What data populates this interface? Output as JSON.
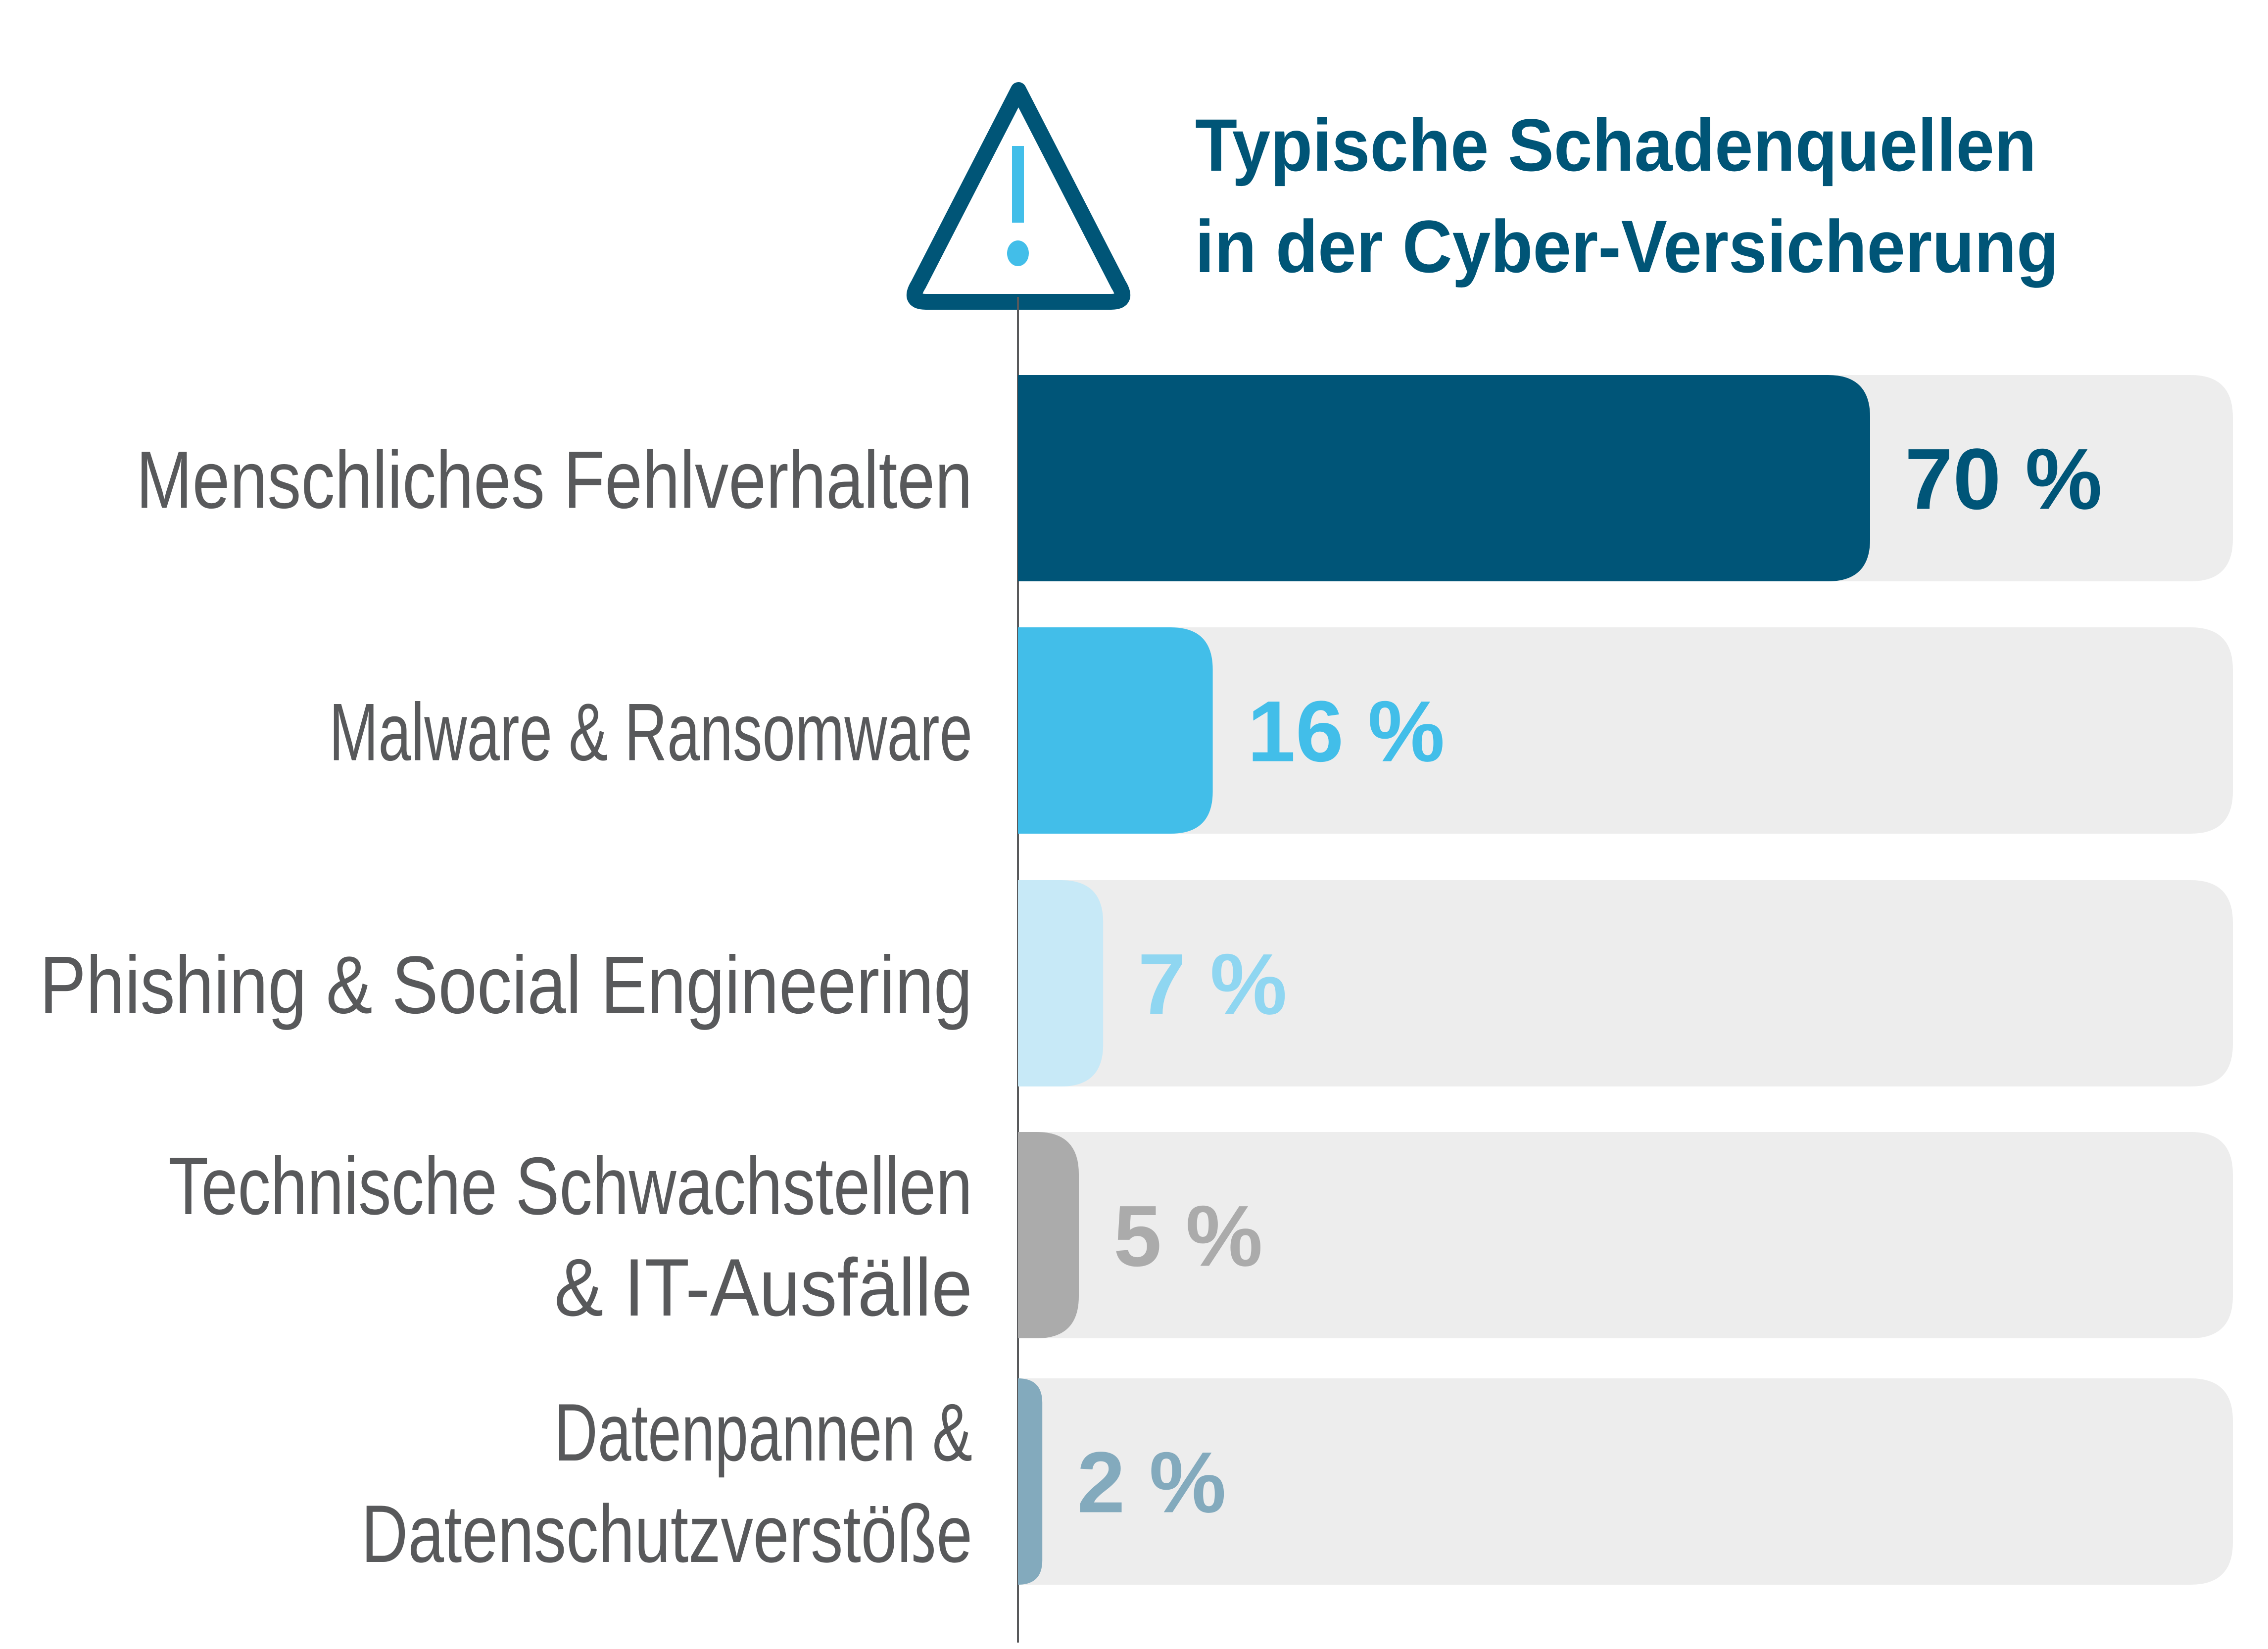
{
  "chart_data": {
    "type": "bar",
    "orientation": "horizontal",
    "title": [
      "Typische Schadenquellen",
      "in der Cyber-Versicherung"
    ],
    "title_icon": "warning-triangle-icon",
    "xlabel": "",
    "ylabel": "",
    "xlim": [
      0,
      100
    ],
    "grid": false,
    "legend": "none",
    "categories": [
      [
        "Menschliches Fehlverhalten"
      ],
      [
        "Malware & Ransomware"
      ],
      [
        "Phishing & Social Engineering"
      ],
      [
        "Technische Schwachstellen",
        "& IT-Ausfälle"
      ],
      [
        "Datenpannen &",
        "Datenschutzverstöße"
      ]
    ],
    "values": [
      70,
      16,
      7,
      5,
      2
    ],
    "value_labels": [
      "70 %",
      "16 %",
      "7 %",
      "5 %",
      "2 %"
    ],
    "unit": "%",
    "colors": {
      "bars": [
        "#005578",
        "#42bee9",
        "#c7e9f7",
        "#ababab",
        "#83aabd"
      ],
      "value_labels": [
        "#005578",
        "#42bee9",
        "#8fd6f1",
        "#ababab",
        "#83aabd"
      ],
      "track": "#ededed",
      "title": "#005577",
      "category_text": "#58595b",
      "axis": "#58595b",
      "icon_stroke": "#005577",
      "icon_mark": "#42bee9"
    }
  }
}
